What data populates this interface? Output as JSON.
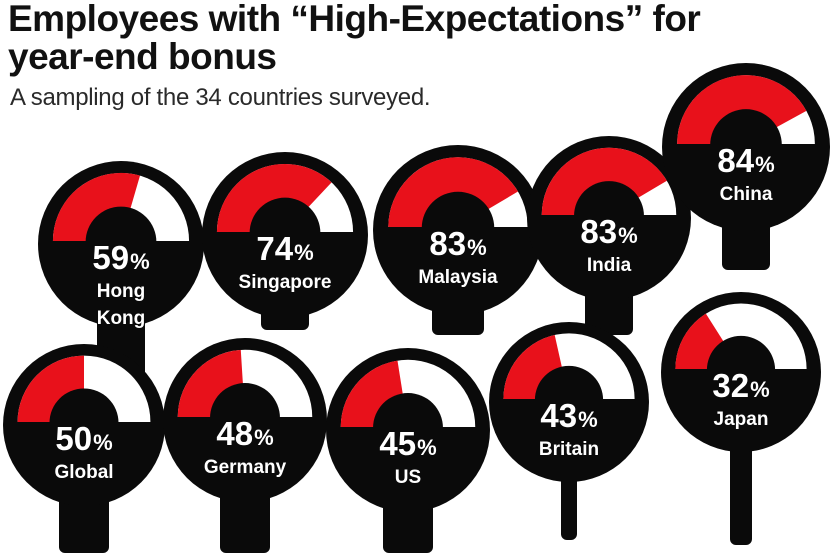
{
  "header": {
    "title": "Employees with “High-Expectations” for year-end bonus",
    "subtitle": "A sampling of the 34 countries surveyed."
  },
  "colors": {
    "fill": "#e8111b",
    "body": "#0a0a0a",
    "dial": "#ffffff",
    "text": "#ffffff"
  },
  "chart_data": {
    "type": "gauge",
    "title": "Employees with “High-Expectations” for year-end bonus",
    "subtitle": "A sampling of the 34 countries surveyed.",
    "unit": "%",
    "categories": [
      "Hong Kong",
      "Singapore",
      "Malaysia",
      "India",
      "China",
      "Global",
      "Germany",
      "US",
      "Britain",
      "Japan"
    ],
    "values": [
      59,
      74,
      83,
      83,
      84,
      50,
      48,
      45,
      43,
      32
    ],
    "value_labels": [
      "59",
      "74",
      "83",
      "83",
      "84",
      "50",
      "48",
      "45",
      "43",
      "32"
    ],
    "label_lines": [
      [
        "Hong",
        "Kong"
      ],
      [
        "Singapore"
      ],
      [
        "Malaysia"
      ],
      [
        "India"
      ],
      [
        "China"
      ],
      [
        "Global"
      ],
      [
        "Germany"
      ],
      [
        "US"
      ],
      [
        "Britain"
      ],
      [
        "Japan"
      ]
    ],
    "percent_sign": "%"
  }
}
